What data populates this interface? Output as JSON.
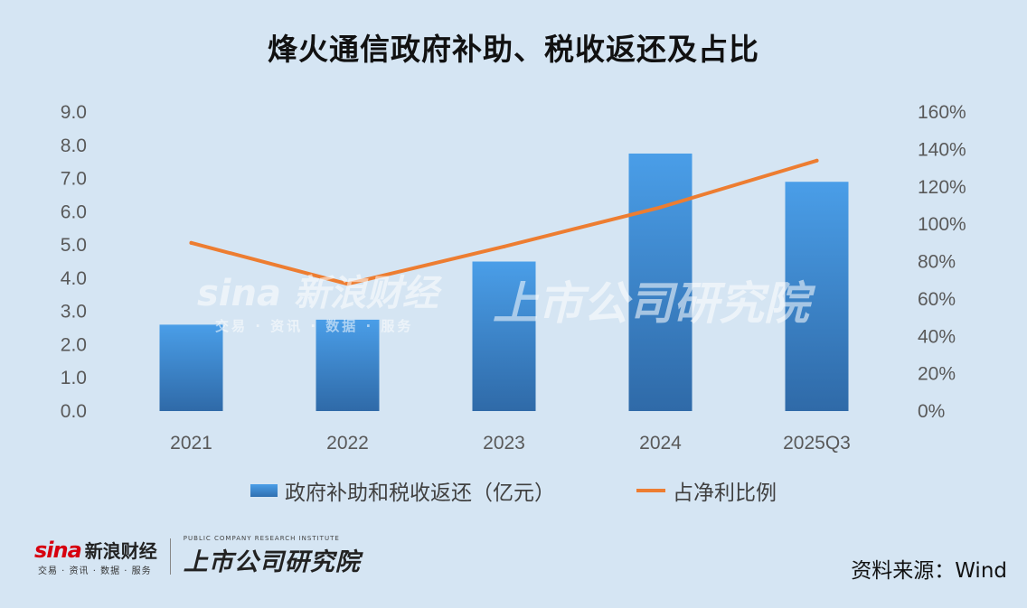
{
  "title": "烽火通信政府补助、税收返还及占比",
  "chart_data": {
    "type": "bar",
    "categories": [
      "2021",
      "2022",
      "2023",
      "2024",
      "2025Q3"
    ],
    "series": [
      {
        "name": "政府补助和税收返还（亿元）",
        "type": "bar",
        "axis": "left",
        "color": "#3d8ad6",
        "values": [
          2.6,
          2.75,
          4.5,
          7.75,
          6.9
        ]
      },
      {
        "name": "占净利比例",
        "type": "line",
        "axis": "right",
        "color": "#ed7d31",
        "values": [
          0.9,
          0.68,
          0.88,
          1.09,
          1.34
        ]
      }
    ],
    "y_left": {
      "min": 0,
      "max": 9,
      "ticks": [
        "0.0",
        "1.0",
        "2.0",
        "3.0",
        "4.0",
        "5.0",
        "6.0",
        "7.0",
        "8.0",
        "9.0"
      ]
    },
    "y_right": {
      "min": 0,
      "max": 1.6,
      "ticks": [
        "0%",
        "20%",
        "40%",
        "60%",
        "80%",
        "100%",
        "120%",
        "140%",
        "160%"
      ]
    },
    "grid": false,
    "legend_position": "bottom"
  },
  "legend": {
    "bar_label": "政府补助和税收返还（亿元）",
    "line_label": "占净利比例"
  },
  "footer": {
    "sina_word": "sina",
    "sina_cn": "新浪财经",
    "sina_sub": "交易 · 资讯 · 数据 · 服务",
    "institute_en": "PUBLIC COMPANY RESEARCH INSTITUTE",
    "institute_cn": "上市公司研究院",
    "source": "资料来源：Wind"
  },
  "watermark": {
    "sina_main": "sina 新浪财经",
    "sina_sub": "交易 · 资讯 · 数据 · 服务",
    "institute": "上市公司研究院"
  }
}
